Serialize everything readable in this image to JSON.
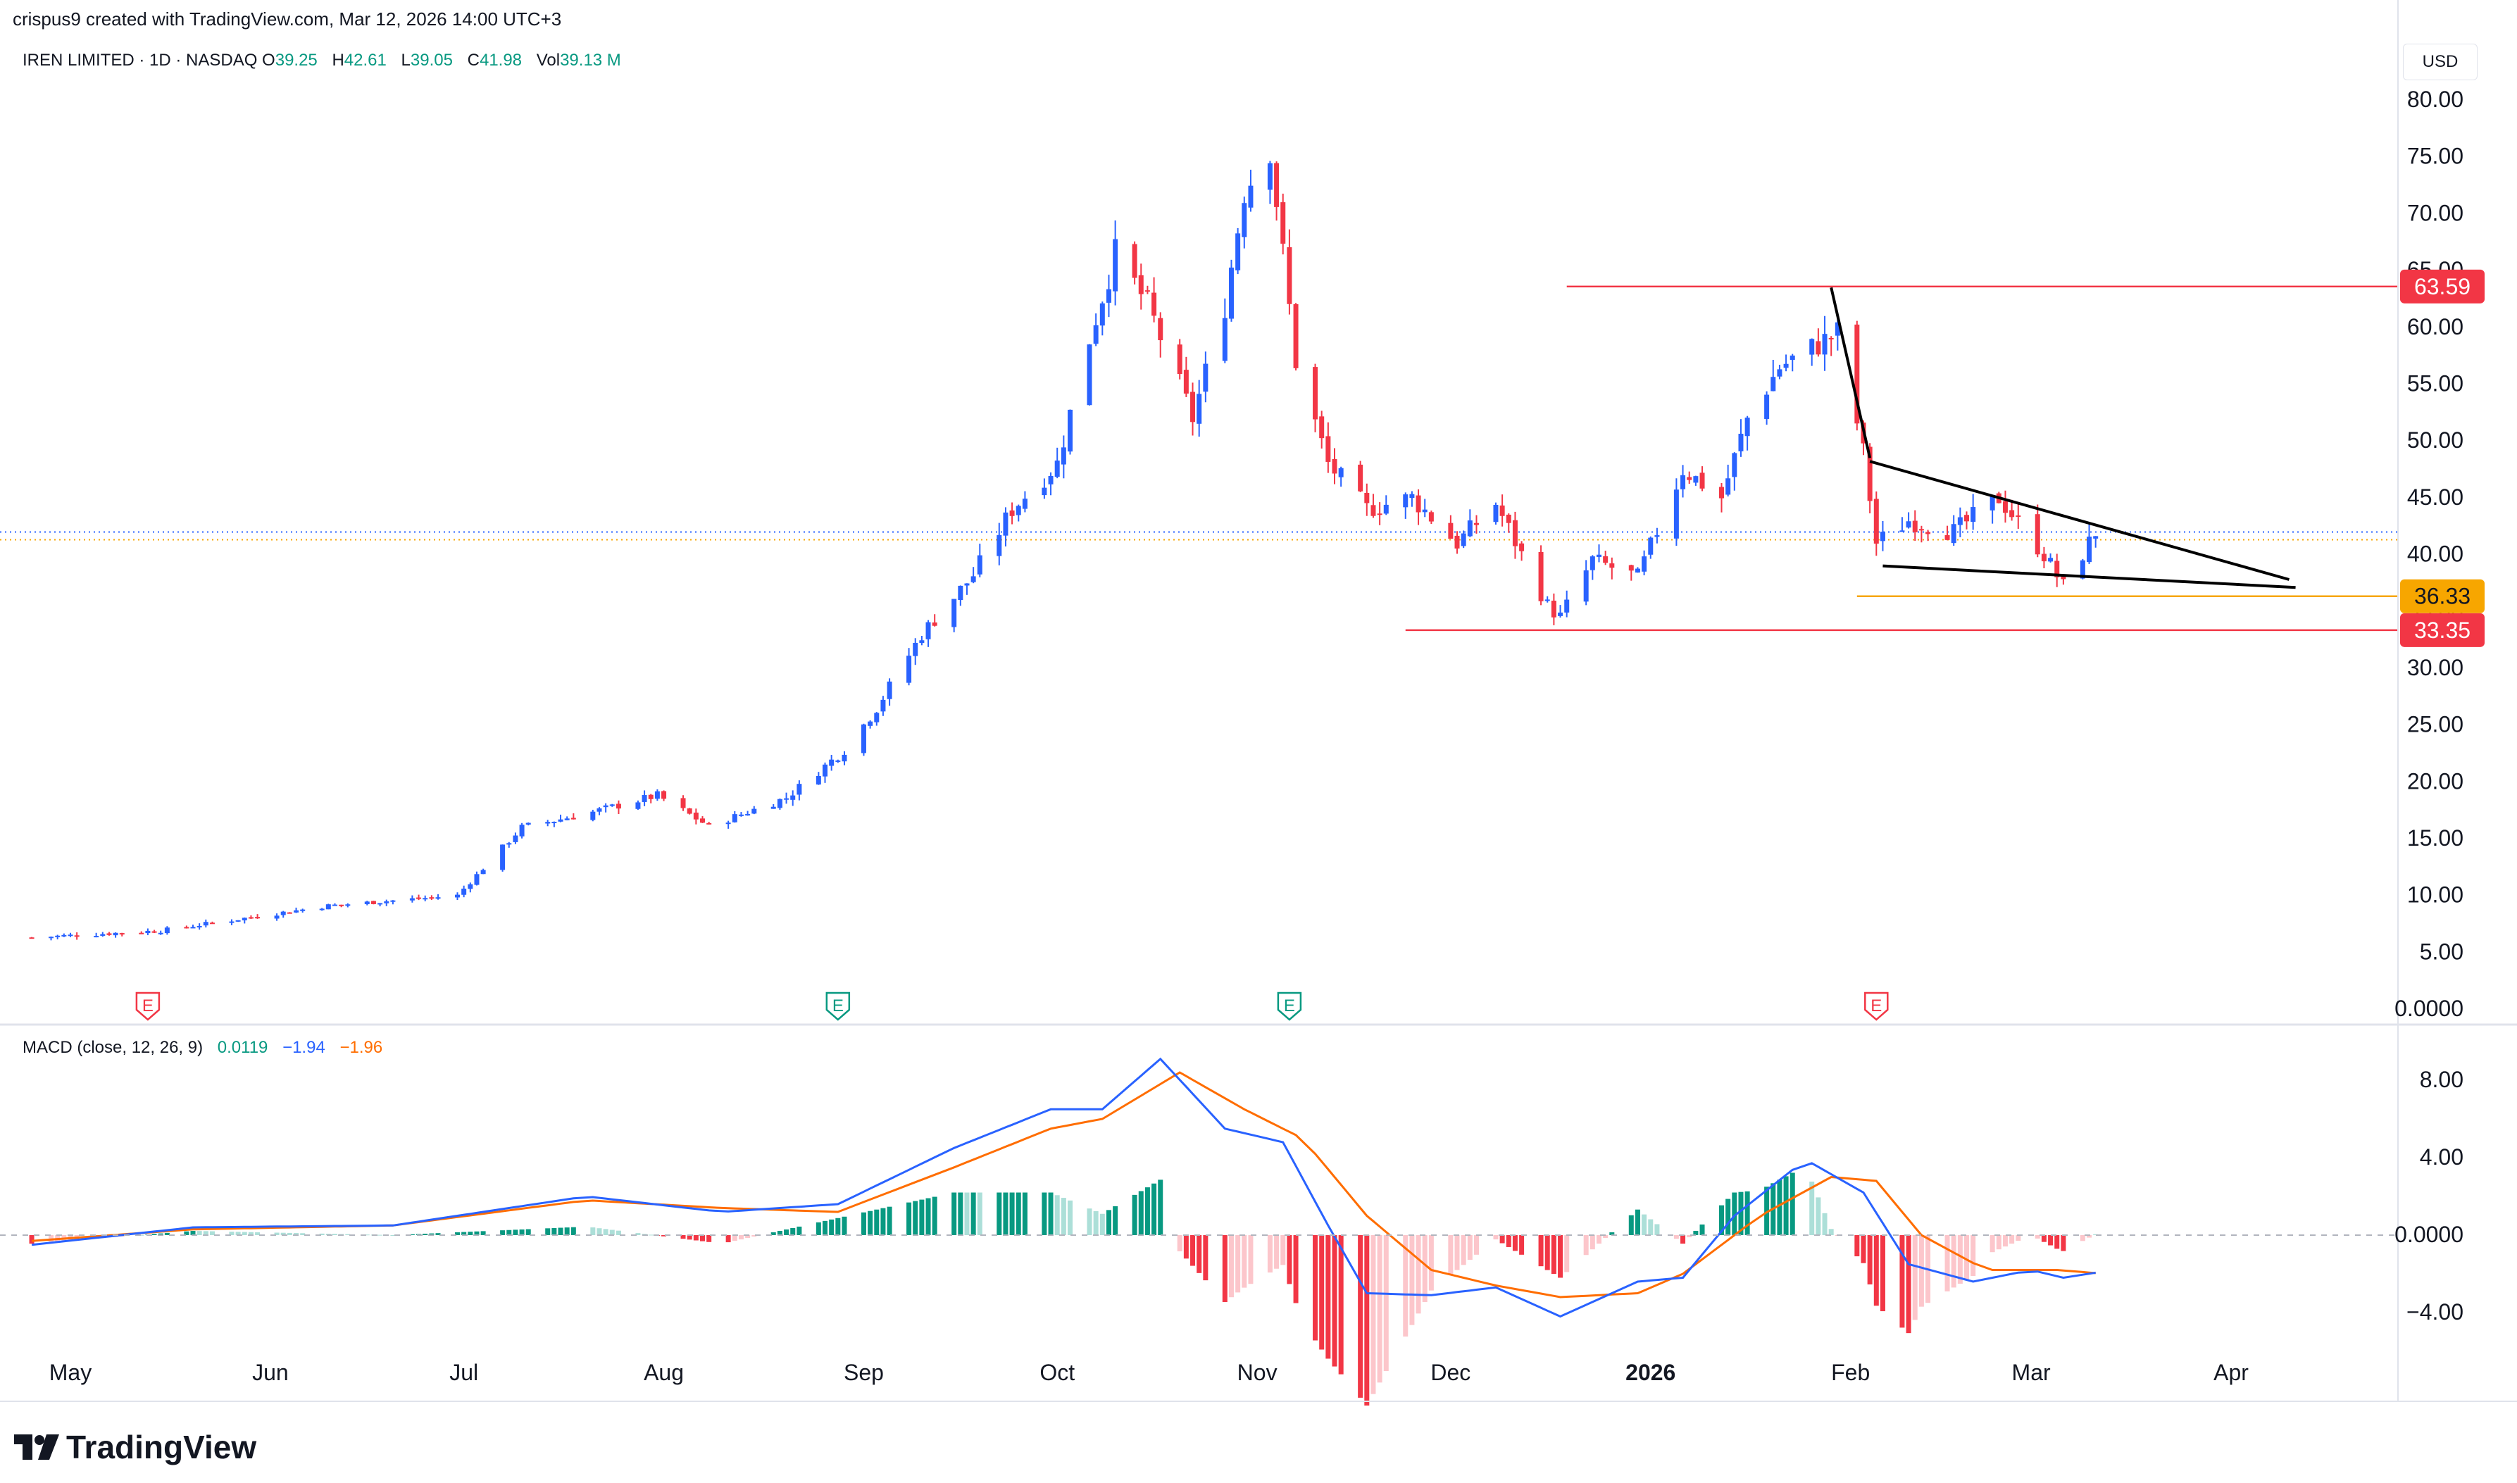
{
  "header": {
    "credit": "crispus9 created with TradingView.com, Mar 12, 2026 14:00 UTC+3",
    "symbol": "IREN LIMITED · 1D · NASDAQ",
    "ohlc": [
      {
        "label": "O",
        "value": "39.25"
      },
      {
        "label": "H",
        "value": "42.61"
      },
      {
        "label": "L",
        "value": "39.05"
      },
      {
        "label": "C",
        "value": "41.98"
      },
      {
        "label": "Vol",
        "value": "39.13 M"
      }
    ],
    "currency": "USD"
  },
  "macd_legend": {
    "label": "MACD (close, 12, 26, 9)",
    "hist": "0.0119",
    "macd": "−1.94",
    "signal": "−1.96"
  },
  "brand": {
    "name": "TradingView",
    "icon": "tradingview-logo-icon"
  },
  "colors": {
    "up": "#2962ff",
    "down": "#f23645",
    "macd_line": "#2962ff",
    "signal_line": "#ff6d00",
    "hist_up": "#089981",
    "hist_down": "#f23645",
    "resistance": "#f23645",
    "support": "#f7a600"
  },
  "chart_data": {
    "type": "candlestick",
    "price_axis": {
      "min": 0,
      "max": 80,
      "ticks": [
        "80.00",
        "75.00",
        "70.00",
        "65.00",
        "60.00",
        "55.00",
        "50.00",
        "45.00",
        "40.00",
        "35.00",
        "30.00",
        "25.00",
        "20.00",
        "15.00",
        "10.00",
        "5.00",
        "0.0000"
      ]
    },
    "time_axis": {
      "labels": [
        "May",
        "Jun",
        "Jul",
        "Aug",
        "Sep",
        "Oct",
        "Nov",
        "Dec",
        "2026",
        "Feb",
        "Mar",
        "Apr"
      ]
    },
    "price_labels": [
      {
        "value": 63.59,
        "text": "63.59",
        "color": "#f23645"
      },
      {
        "value": 36.33,
        "text": "36.33",
        "color": "#f7a600"
      },
      {
        "value": 33.35,
        "text": "33.35",
        "color": "#f23645"
      }
    ],
    "horizontal_lines": [
      {
        "name": "resistance",
        "value": 63.59,
        "from": "2025-12-19",
        "color": "#f23645"
      },
      {
        "name": "support",
        "value": 36.33,
        "from": "2026-02-02",
        "color": "#f7a600"
      },
      {
        "name": "low",
        "value": 33.35,
        "from": "2025-11-24",
        "color": "#f23645"
      }
    ],
    "wedge": {
      "drop": [
        {
          "date": "2026-01-29",
          "value": 63.5
        },
        {
          "date": "2026-02-04",
          "value": 48.5
        }
      ],
      "upper": [
        {
          "date": "2026-02-04",
          "value": 48.2
        },
        {
          "date": "2026-04-10",
          "value": 37.8
        }
      ],
      "lower": [
        {
          "date": "2026-02-06",
          "value": 39.0
        },
        {
          "date": "2026-04-11",
          "value": 37.1
        }
      ]
    },
    "earnings_markers": [
      {
        "date": "2025-05-13",
        "label": "E",
        "color": "#f23645"
      },
      {
        "date": "2025-08-28",
        "label": "E",
        "color": "#089981"
      },
      {
        "date": "2025-11-06",
        "label": "E",
        "color": "#089981"
      },
      {
        "date": "2026-02-05",
        "label": "E",
        "color": "#f23645"
      }
    ],
    "price_points": [
      [
        "2025-04-25",
        6.3
      ],
      [
        "2025-05-15",
        6.9
      ],
      [
        "2025-06-10",
        9.1
      ],
      [
        "2025-06-30",
        10.0
      ],
      [
        "2025-07-10",
        16.0
      ],
      [
        "2025-07-20",
        17.2
      ],
      [
        "2025-07-31",
        18.8
      ],
      [
        "2025-08-08",
        16.1
      ],
      [
        "2025-08-20",
        18.6
      ],
      [
        "2025-08-29",
        22.8
      ],
      [
        "2025-09-03",
        26.5
      ],
      [
        "2025-09-10",
        33.0
      ],
      [
        "2025-09-18",
        38.2
      ],
      [
        "2025-09-24",
        44.0
      ],
      [
        "2025-10-01",
        48.0
      ],
      [
        "2025-10-06",
        59.0
      ],
      [
        "2025-10-10",
        66.5
      ],
      [
        "2025-10-15",
        62.0
      ],
      [
        "2025-10-22",
        52.0
      ],
      [
        "2025-10-27",
        62.0
      ],
      [
        "2025-10-30",
        72.0
      ],
      [
        "2025-11-03",
        75.8
      ],
      [
        "2025-11-07",
        57.0
      ],
      [
        "2025-11-12",
        48.0
      ],
      [
        "2025-11-18",
        44.0
      ],
      [
        "2025-11-25",
        45.0
      ],
      [
        "2025-12-02",
        41.0
      ],
      [
        "2025-12-08",
        44.5
      ],
      [
        "2025-12-12",
        40.0
      ],
      [
        "2025-12-16",
        35.5
      ],
      [
        "2025-12-18",
        34.5
      ],
      [
        "2025-12-23",
        39.5
      ],
      [
        "2025-12-30",
        38.0
      ],
      [
        "2026-01-06",
        47.5
      ],
      [
        "2026-01-12",
        45.0
      ],
      [
        "2026-01-16",
        52.0
      ],
      [
        "2026-01-21",
        56.5
      ],
      [
        "2026-01-27",
        58.5
      ],
      [
        "2026-01-30",
        59.5
      ],
      [
        "2026-02-03",
        49.0
      ],
      [
        "2026-02-05",
        41.0
      ],
      [
        "2026-02-10",
        43.0
      ],
      [
        "2026-02-17",
        42.0
      ],
      [
        "2026-02-24",
        45.0
      ],
      [
        "2026-03-03",
        40.0
      ],
      [
        "2026-03-06",
        37.2
      ],
      [
        "2026-03-11",
        41.98
      ]
    ],
    "macd": {
      "range": [
        -5,
        10
      ],
      "ticks": [
        "8.00",
        "4.00",
        "0.0000",
        "−4.00"
      ],
      "macd_points": [
        [
          "2025-04-25",
          -0.5
        ],
        [
          "2025-05-20",
          0.4
        ],
        [
          "2025-06-20",
          0.5
        ],
        [
          "2025-07-20",
          2.0
        ],
        [
          "2025-08-10",
          1.2
        ],
        [
          "2025-08-28",
          1.6
        ],
        [
          "2025-09-15",
          4.5
        ],
        [
          "2025-09-30",
          6.5
        ],
        [
          "2025-10-08",
          6.5
        ],
        [
          "2025-10-17",
          9.1
        ],
        [
          "2025-10-27",
          5.5
        ],
        [
          "2025-11-05",
          4.8
        ],
        [
          "2025-11-12",
          0.5
        ],
        [
          "2025-11-18",
          -3.0
        ],
        [
          "2025-11-28",
          -3.1
        ],
        [
          "2025-12-08",
          -2.7
        ],
        [
          "2025-12-18",
          -4.2
        ],
        [
          "2025-12-30",
          -2.4
        ],
        [
          "2026-01-06",
          -2.2
        ],
        [
          "2026-01-14",
          1.0
        ],
        [
          "2026-01-25",
          3.9
        ],
        [
          "2026-02-03",
          2.2
        ],
        [
          "2026-02-10",
          -1.5
        ],
        [
          "2026-02-20",
          -2.4
        ],
        [
          "2026-03-01",
          -1.8
        ],
        [
          "2026-03-06",
          -2.2
        ],
        [
          "2026-03-11",
          -1.94
        ]
      ],
      "signal_points": [
        [
          "2025-04-25",
          -0.3
        ],
        [
          "2025-05-20",
          0.3
        ],
        [
          "2025-06-20",
          0.5
        ],
        [
          "2025-07-20",
          1.8
        ],
        [
          "2025-08-10",
          1.4
        ],
        [
          "2025-08-28",
          1.2
        ],
        [
          "2025-09-15",
          3.5
        ],
        [
          "2025-09-30",
          5.5
        ],
        [
          "2025-10-08",
          6.0
        ],
        [
          "2025-10-20",
          8.4
        ],
        [
          "2025-10-30",
          6.5
        ],
        [
          "2025-11-08",
          5.0
        ],
        [
          "2025-11-18",
          1.0
        ],
        [
          "2025-11-28",
          -1.8
        ],
        [
          "2025-12-08",
          -2.6
        ],
        [
          "2025-12-18",
          -3.2
        ],
        [
          "2025-12-30",
          -3.0
        ],
        [
          "2026-01-06",
          -2.0
        ],
        [
          "2026-01-18",
          1.0
        ],
        [
          "2026-01-29",
          3.0
        ],
        [
          "2026-02-05",
          2.8
        ],
        [
          "2026-02-12",
          0.0
        ],
        [
          "2026-02-22",
          -1.8
        ],
        [
          "2026-03-05",
          -1.8
        ],
        [
          "2026-03-11",
          -1.96
        ]
      ]
    }
  }
}
